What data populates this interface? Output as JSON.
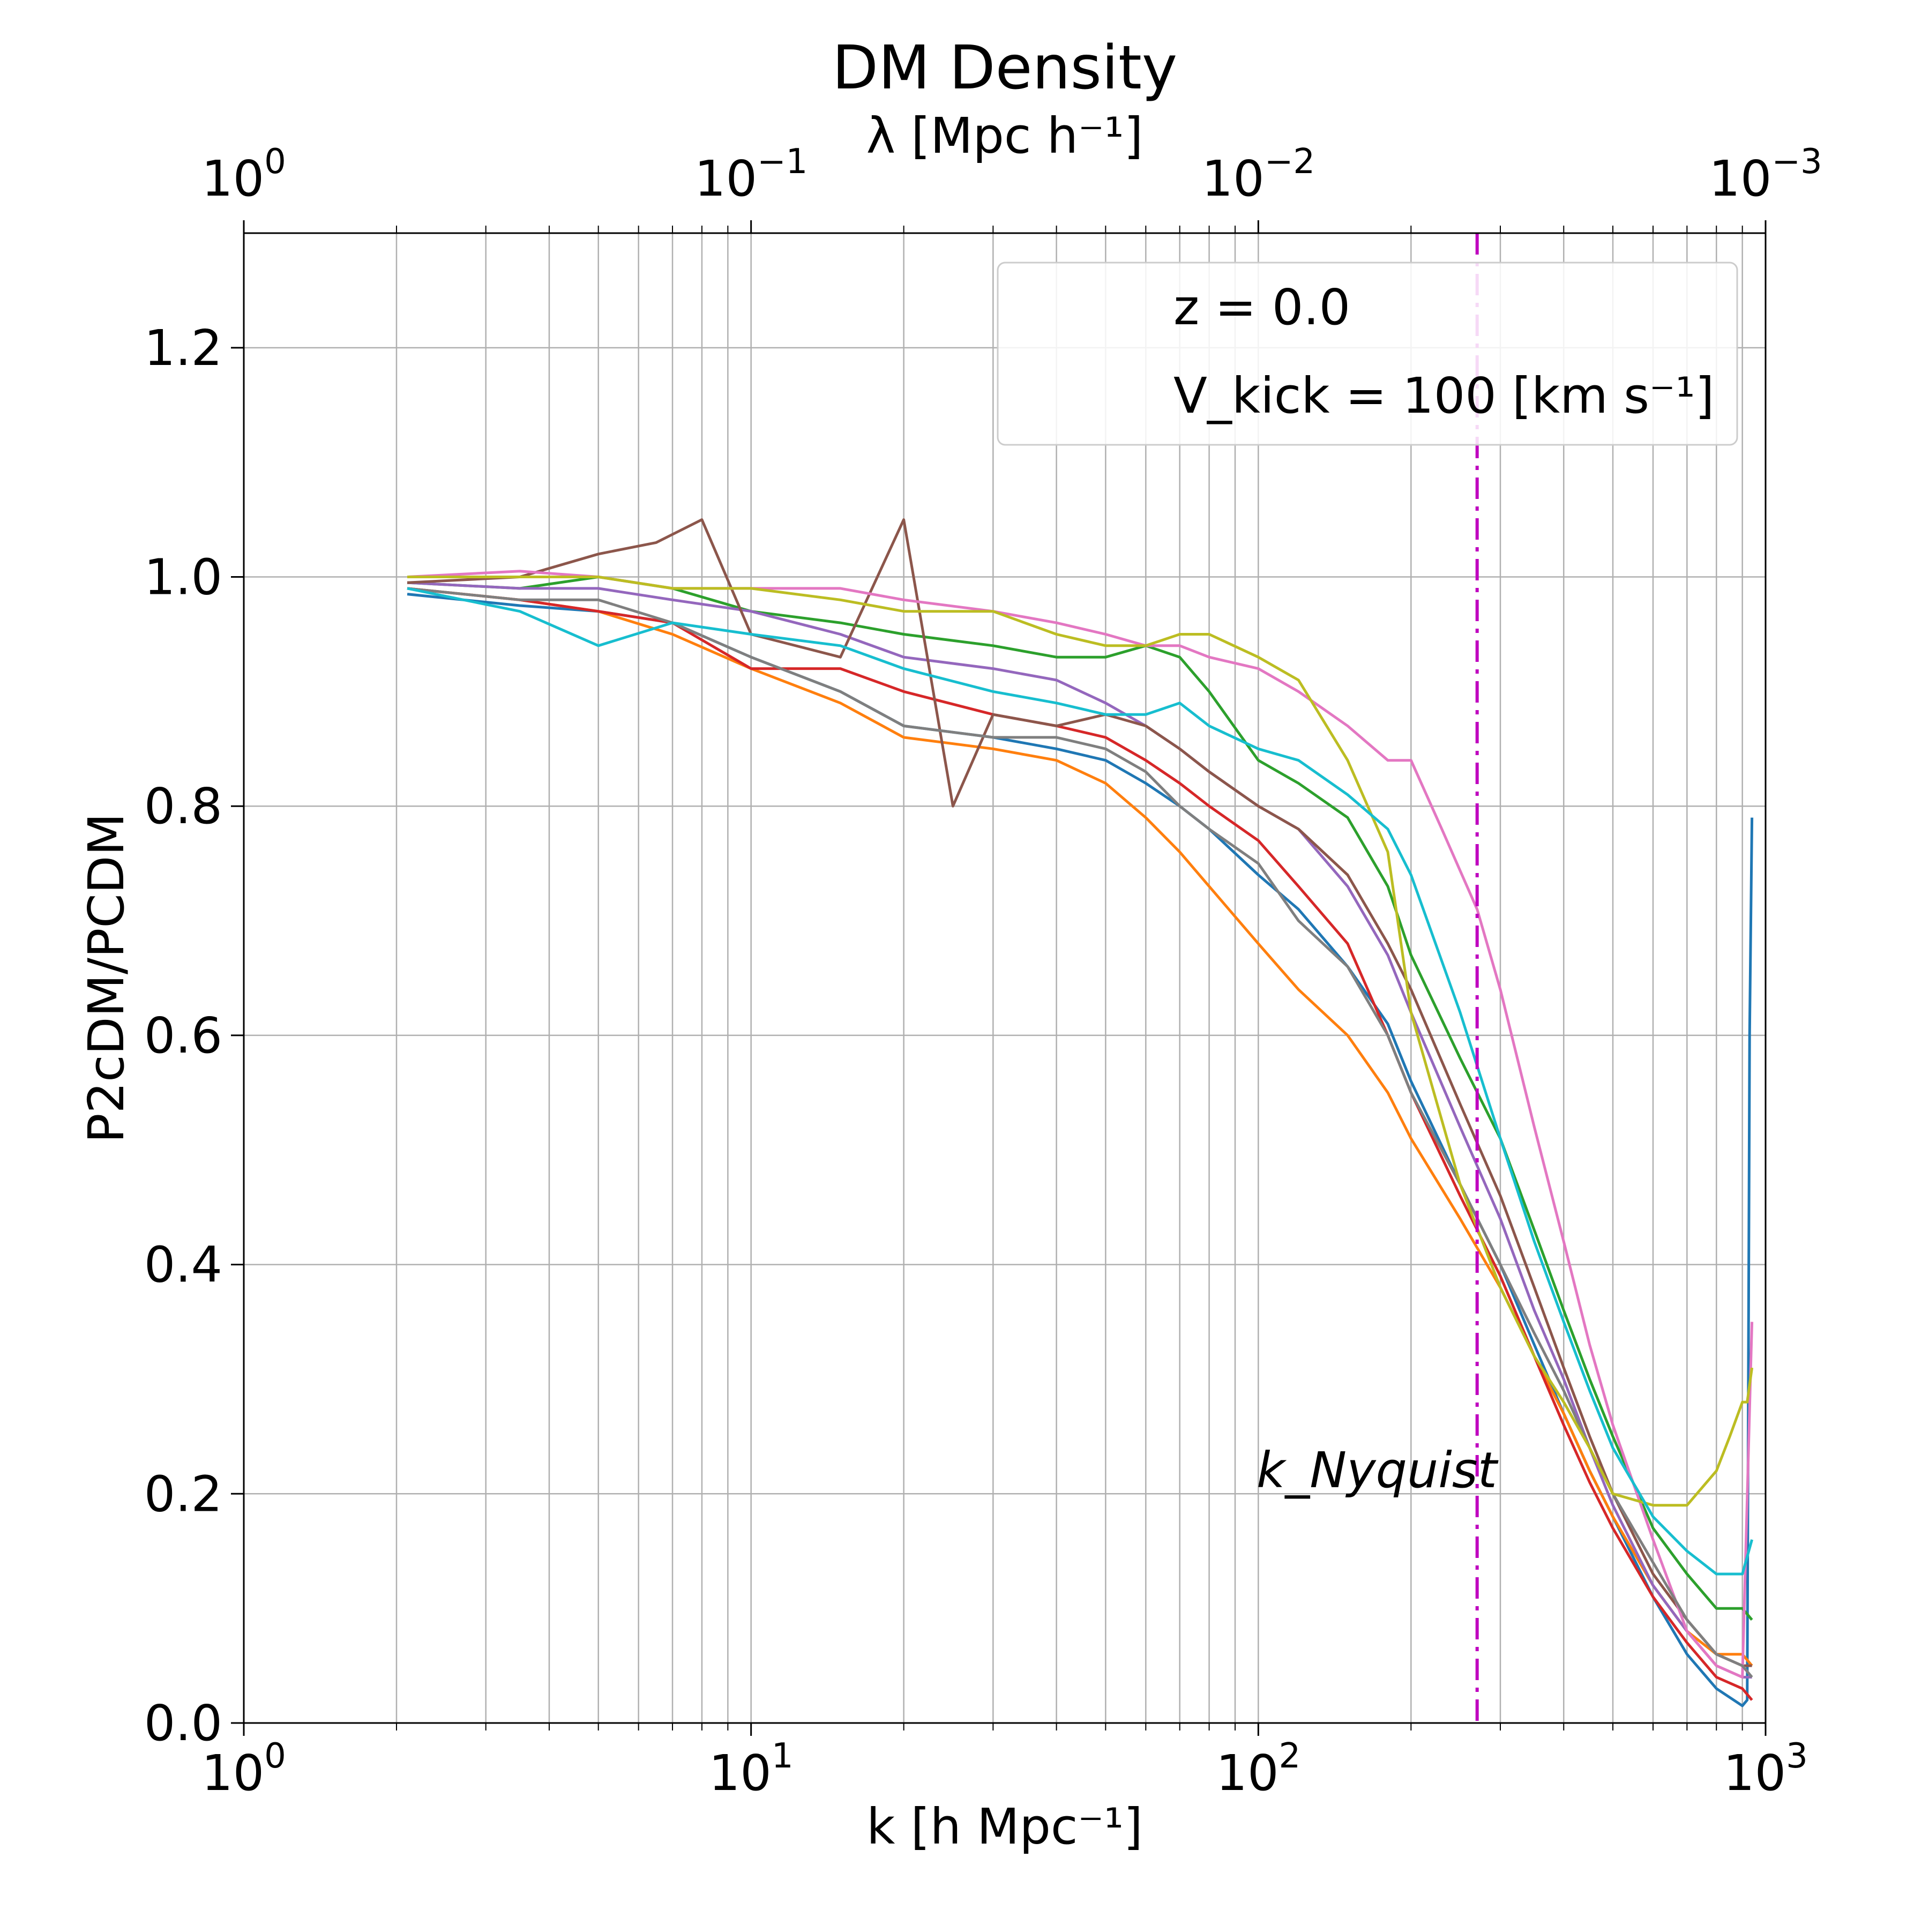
{
  "chart_data": {
    "type": "line",
    "title": "DM Density",
    "xlabel": "k [h Mpc⁻¹]",
    "xscale": "log",
    "xlim": [
      1,
      1000
    ],
    "top_axis": {
      "label": "λ [Mpc h⁻¹]",
      "scale": "log",
      "ticks": [
        {
          "at_k": 1,
          "base": "10",
          "exp": "0"
        },
        {
          "at_k": 10,
          "base": "10",
          "exp": "−1"
        },
        {
          "at_k": 100,
          "base": "10",
          "exp": "−2"
        },
        {
          "at_k": 1000,
          "base": "10",
          "exp": "−3"
        }
      ]
    },
    "x_ticks": [
      {
        "value": 1,
        "base": "10",
        "exp": "0"
      },
      {
        "value": 10,
        "base": "10",
        "exp": "1"
      },
      {
        "value": 100,
        "base": "10",
        "exp": "2"
      },
      {
        "value": 1000,
        "base": "10",
        "exp": "3"
      }
    ],
    "ylabel": "P2cDM/PCDM",
    "ylim": [
      0,
      1.3
    ],
    "y_ticks": [
      "0.0",
      "0.2",
      "0.4",
      "0.6",
      "0.8",
      "1.0",
      "1.2"
    ],
    "grid": true,
    "legend": {
      "placement": "top-right",
      "lines": [
        "z = 0.0",
        "V_kick = 100 [km s⁻¹]"
      ]
    },
    "vline": {
      "x": 270,
      "color": "#bf00bf",
      "style": "dash-dot",
      "label": "k_Nyquist"
    },
    "series": [
      {
        "color": "#1f77b4",
        "x": [
          2.1,
          3.5,
          5,
          7,
          10,
          15,
          20,
          30,
          40,
          50,
          60,
          70,
          80,
          100,
          120,
          150,
          180,
          200,
          250,
          300,
          350,
          400,
          450,
          500,
          600,
          700,
          800,
          900,
          920,
          930,
          940
        ],
        "y": [
          0.985,
          0.975,
          0.97,
          0.96,
          0.93,
          0.9,
          0.87,
          0.86,
          0.85,
          0.84,
          0.82,
          0.8,
          0.78,
          0.74,
          0.71,
          0.66,
          0.61,
          0.56,
          0.47,
          0.4,
          0.33,
          0.27,
          0.22,
          0.18,
          0.11,
          0.06,
          0.03,
          0.015,
          0.02,
          0.6,
          0.79
        ]
      },
      {
        "color": "#ff7f0e",
        "x": [
          2.1,
          3.5,
          5,
          7,
          10,
          15,
          20,
          30,
          40,
          50,
          60,
          70,
          80,
          100,
          120,
          150,
          180,
          200,
          250,
          300,
          350,
          400,
          450,
          500,
          600,
          700,
          800,
          900,
          940
        ],
        "y": [
          0.99,
          0.98,
          0.97,
          0.95,
          0.92,
          0.89,
          0.86,
          0.85,
          0.84,
          0.82,
          0.79,
          0.76,
          0.73,
          0.68,
          0.64,
          0.6,
          0.55,
          0.51,
          0.44,
          0.38,
          0.32,
          0.27,
          0.22,
          0.18,
          0.12,
          0.08,
          0.06,
          0.06,
          0.05
        ]
      },
      {
        "color": "#2ca02c",
        "x": [
          2.1,
          3.5,
          5,
          7,
          10,
          15,
          20,
          30,
          40,
          50,
          60,
          70,
          80,
          100,
          120,
          150,
          180,
          200,
          250,
          300,
          350,
          400,
          450,
          500,
          600,
          700,
          800,
          900,
          940
        ],
        "y": [
          0.995,
          0.99,
          1.0,
          0.99,
          0.97,
          0.96,
          0.95,
          0.94,
          0.93,
          0.93,
          0.94,
          0.93,
          0.9,
          0.84,
          0.82,
          0.79,
          0.73,
          0.67,
          0.58,
          0.51,
          0.43,
          0.36,
          0.3,
          0.25,
          0.17,
          0.13,
          0.1,
          0.1,
          0.09
        ]
      },
      {
        "color": "#d62728",
        "x": [
          2.1,
          3.5,
          5,
          7,
          10,
          15,
          20,
          30,
          40,
          50,
          60,
          70,
          80,
          100,
          120,
          150,
          180,
          200,
          250,
          300,
          350,
          400,
          450,
          500,
          600,
          700,
          800,
          900,
          940
        ],
        "y": [
          0.99,
          0.98,
          0.97,
          0.96,
          0.92,
          0.92,
          0.9,
          0.88,
          0.87,
          0.86,
          0.84,
          0.82,
          0.8,
          0.77,
          0.73,
          0.68,
          0.6,
          0.55,
          0.46,
          0.39,
          0.32,
          0.26,
          0.21,
          0.17,
          0.11,
          0.07,
          0.04,
          0.03,
          0.02
        ]
      },
      {
        "color": "#9467bd",
        "x": [
          2.1,
          3.5,
          5,
          7,
          10,
          15,
          20,
          30,
          40,
          50,
          60,
          70,
          80,
          100,
          120,
          150,
          180,
          200,
          250,
          300,
          350,
          400,
          450,
          500,
          600,
          700,
          800,
          900,
          940
        ],
        "y": [
          0.995,
          0.99,
          0.99,
          0.98,
          0.97,
          0.95,
          0.93,
          0.92,
          0.91,
          0.89,
          0.87,
          0.85,
          0.83,
          0.8,
          0.78,
          0.73,
          0.67,
          0.62,
          0.52,
          0.44,
          0.36,
          0.3,
          0.24,
          0.19,
          0.12,
          0.08,
          0.05,
          0.04,
          0.04
        ]
      },
      {
        "color": "#8c564b",
        "x": [
          2.1,
          3.5,
          5,
          6.5,
          8,
          10,
          15,
          20,
          25,
          30,
          40,
          50,
          60,
          70,
          80,
          100,
          120,
          150,
          180,
          200,
          250,
          300,
          350,
          400,
          450,
          500,
          600,
          700,
          800,
          900,
          940
        ],
        "y": [
          0.995,
          1.0,
          1.02,
          1.03,
          1.05,
          0.95,
          0.93,
          1.05,
          0.8,
          0.88,
          0.87,
          0.88,
          0.87,
          0.85,
          0.83,
          0.8,
          0.78,
          0.74,
          0.68,
          0.64,
          0.54,
          0.46,
          0.38,
          0.31,
          0.25,
          0.2,
          0.13,
          0.09,
          0.06,
          0.05,
          0.05
        ]
      },
      {
        "color": "#e377c2",
        "x": [
          2.1,
          3.5,
          5,
          7,
          10,
          15,
          20,
          30,
          40,
          50,
          60,
          70,
          80,
          100,
          120,
          150,
          180,
          200,
          230,
          270,
          300,
          350,
          400,
          450,
          500,
          600,
          700,
          800,
          900,
          940
        ],
        "y": [
          1.0,
          1.005,
          1.0,
          0.99,
          0.99,
          0.99,
          0.98,
          0.97,
          0.96,
          0.95,
          0.94,
          0.94,
          0.93,
          0.92,
          0.9,
          0.87,
          0.84,
          0.84,
          0.78,
          0.71,
          0.64,
          0.52,
          0.42,
          0.33,
          0.26,
          0.16,
          0.08,
          0.05,
          0.04,
          0.35
        ]
      },
      {
        "color": "#7f7f7f",
        "x": [
          2.1,
          3.5,
          5,
          7,
          10,
          15,
          20,
          30,
          40,
          50,
          60,
          70,
          80,
          100,
          120,
          150,
          180,
          200,
          250,
          300,
          350,
          400,
          450,
          500,
          600,
          700,
          800,
          900,
          940
        ],
        "y": [
          0.99,
          0.98,
          0.98,
          0.96,
          0.93,
          0.9,
          0.87,
          0.86,
          0.86,
          0.85,
          0.83,
          0.8,
          0.78,
          0.75,
          0.7,
          0.66,
          0.6,
          0.55,
          0.47,
          0.4,
          0.34,
          0.29,
          0.24,
          0.2,
          0.14,
          0.09,
          0.06,
          0.05,
          0.04
        ]
      },
      {
        "color": "#bcbd22",
        "x": [
          2.1,
          3.5,
          5,
          7,
          10,
          15,
          20,
          30,
          40,
          50,
          60,
          70,
          80,
          100,
          120,
          150,
          180,
          200,
          250,
          300,
          350,
          400,
          450,
          500,
          600,
          700,
          800,
          850,
          900,
          920,
          940
        ],
        "y": [
          1.0,
          1.0,
          1.0,
          0.99,
          0.99,
          0.98,
          0.97,
          0.97,
          0.95,
          0.94,
          0.94,
          0.95,
          0.95,
          0.93,
          0.91,
          0.84,
          0.76,
          0.62,
          0.47,
          0.38,
          0.32,
          0.28,
          0.24,
          0.2,
          0.19,
          0.19,
          0.22,
          0.25,
          0.28,
          0.28,
          0.31
        ]
      },
      {
        "color": "#17becf",
        "x": [
          2.1,
          3.5,
          5,
          7,
          10,
          15,
          20,
          30,
          40,
          50,
          60,
          70,
          80,
          100,
          120,
          150,
          180,
          200,
          250,
          300,
          350,
          400,
          450,
          500,
          600,
          700,
          800,
          900,
          940
        ],
        "y": [
          0.99,
          0.97,
          0.94,
          0.96,
          0.95,
          0.94,
          0.92,
          0.9,
          0.89,
          0.88,
          0.88,
          0.89,
          0.87,
          0.85,
          0.84,
          0.81,
          0.78,
          0.74,
          0.62,
          0.51,
          0.42,
          0.35,
          0.29,
          0.24,
          0.18,
          0.15,
          0.13,
          0.13,
          0.16
        ]
      }
    ]
  }
}
